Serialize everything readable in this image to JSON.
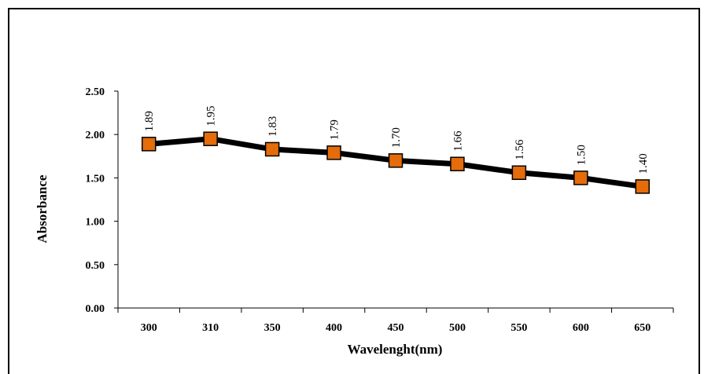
{
  "chart_data": {
    "type": "line",
    "categories": [
      "300",
      "310",
      "350",
      "400",
      "450",
      "500",
      "550",
      "600",
      "650"
    ],
    "values": [
      1.89,
      1.95,
      1.83,
      1.79,
      1.7,
      1.66,
      1.56,
      1.5,
      1.4
    ],
    "data_labels": [
      "1.89",
      "1.95",
      "1.83",
      "1.79",
      "1.70",
      "1.66",
      "1.56",
      "1.50",
      "1.40"
    ],
    "title": "",
    "xlabel": "Wavelenght(nm)",
    "ylabel": "Absorbance",
    "ylim": [
      0,
      2.5
    ],
    "yticks": [
      "0.00",
      "0.50",
      "1.00",
      "1.50",
      "2.00",
      "2.50"
    ],
    "grid": false,
    "legend": "none",
    "colors": {
      "line": "#000000",
      "marker_fill": "#E46C0A",
      "marker_edge": "#000000"
    }
  }
}
